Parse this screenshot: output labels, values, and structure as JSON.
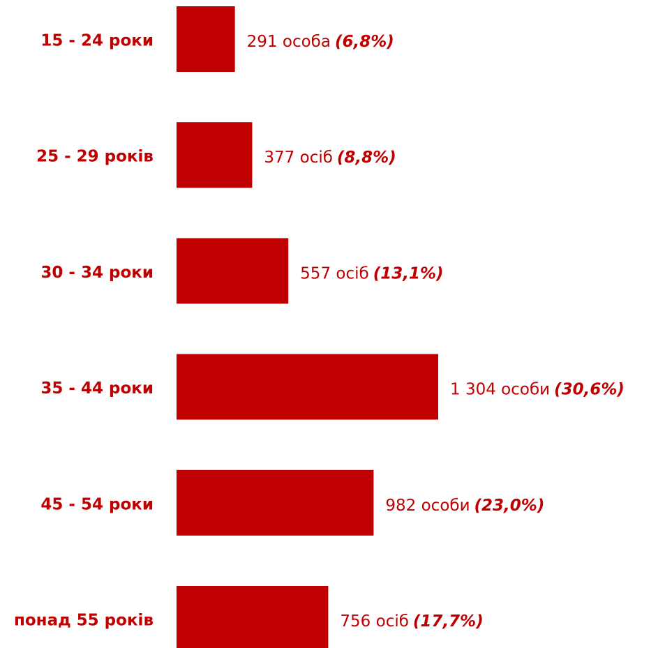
{
  "chart_data": {
    "type": "bar",
    "orientation": "horizontal",
    "color": "#c00000",
    "categories": [
      "15 - 24 роки",
      "25 - 29 років",
      "30 - 34 роки",
      "35 - 44 роки",
      "45 - 54 роки",
      "понад 55 років"
    ],
    "values": [
      291,
      377,
      557,
      1304,
      982,
      756
    ],
    "value_labels": [
      "291 особа",
      "377 осіб",
      "557 осіб",
      "1 304 особи",
      "982 особи",
      "756 осіб"
    ],
    "percent_labels": [
      "(6,8%)",
      "(8,8%)",
      "(13,1%)",
      "(30,6%)",
      "(23,0%)",
      "(17,7%)"
    ]
  }
}
